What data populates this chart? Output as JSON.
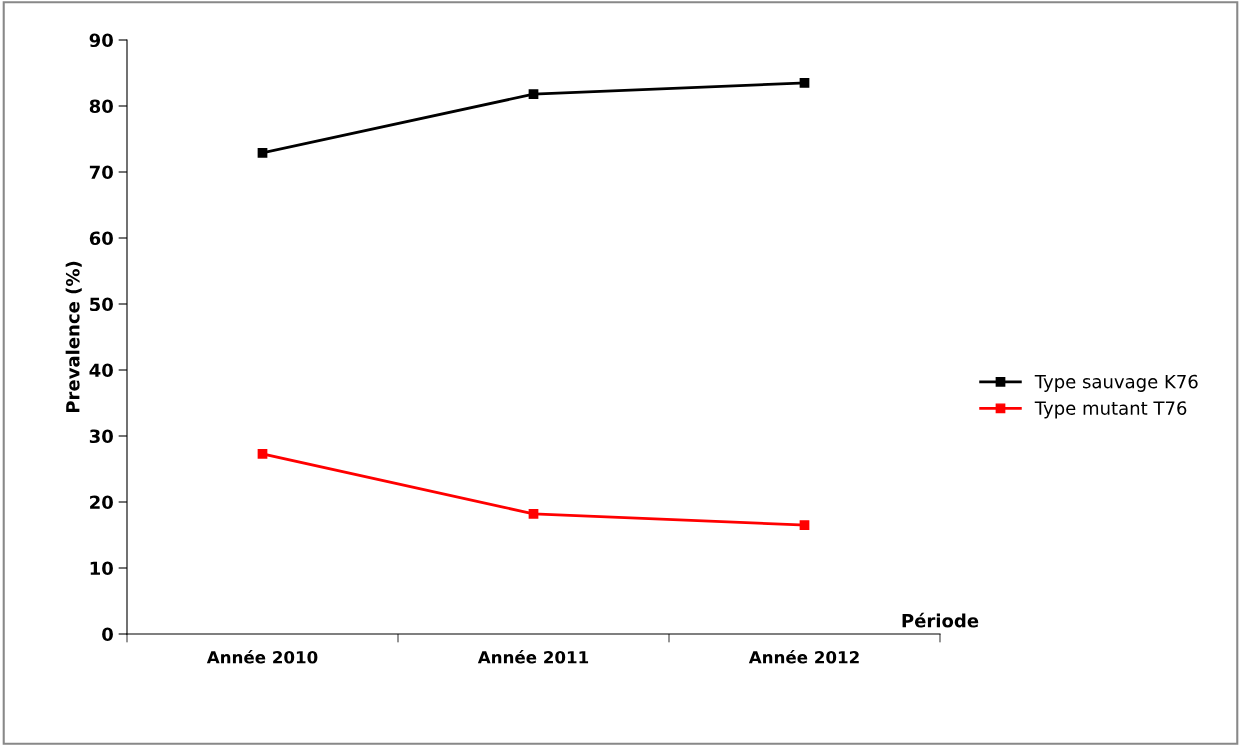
{
  "chart_data": {
    "type": "line",
    "xlabel": "Période",
    "ylabel": "Prevalence (%)",
    "categories": [
      "Année 2010",
      "Année 2011",
      "Année 2012"
    ],
    "series": [
      {
        "name": "Type sauvage K76",
        "color": "#000000",
        "values": [
          72.9,
          81.8,
          83.5
        ]
      },
      {
        "name": "Type mutant T76",
        "color": "#ff0000",
        "values": [
          27.3,
          18.2,
          16.5
        ]
      }
    ],
    "ylim": [
      0,
      90
    ],
    "yticks": [
      0,
      10,
      20,
      30,
      40,
      50,
      60,
      70,
      80,
      90
    ],
    "grid": false,
    "legend": "right",
    "marker": "square",
    "line_style": "solid"
  }
}
